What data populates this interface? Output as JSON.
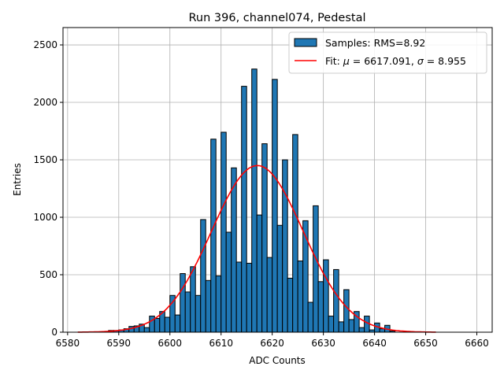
{
  "chart_data": {
    "type": "bar",
    "title": "Run 396, channel074, Pedestal",
    "xlabel": "ADC Counts",
    "ylabel": "Entries",
    "xlim": [
      6579.1,
      6663
    ],
    "ylim": [
      0,
      2651
    ],
    "grid": true,
    "legend_placement": "top-right",
    "xticks": [
      6580,
      6590,
      6600,
      6610,
      6620,
      6630,
      6640,
      6650,
      6660
    ],
    "yticks": [
      0,
      500,
      1000,
      1500,
      2000,
      2500
    ],
    "bin_width": 1,
    "bin_starts": [
      6588,
      6589,
      6590,
      6591,
      6592,
      6593,
      6594,
      6595,
      6596,
      6597,
      6598,
      6599,
      6600,
      6601,
      6602,
      6603,
      6604,
      6605,
      6606,
      6607,
      6608,
      6609,
      6610,
      6611,
      6612,
      6613,
      6614,
      6615,
      6616,
      6617,
      6618,
      6619,
      6620,
      6621,
      6622,
      6623,
      6624,
      6625,
      6626,
      6627,
      6628,
      6629,
      6630,
      6631,
      6632,
      6633,
      6634,
      6635,
      6636,
      6637,
      6638,
      6639,
      6640,
      6641,
      6642,
      6643
    ],
    "values": [
      15,
      15,
      20,
      30,
      50,
      55,
      70,
      40,
      140,
      120,
      180,
      130,
      320,
      150,
      510,
      350,
      570,
      320,
      980,
      450,
      1680,
      490,
      1740,
      870,
      1430,
      610,
      2140,
      600,
      2290,
      1020,
      1640,
      650,
      2200,
      930,
      1500,
      470,
      1720,
      620,
      970,
      260,
      1100,
      440,
      630,
      140,
      545,
      90,
      370,
      110,
      180,
      40,
      140,
      20,
      80,
      30,
      60,
      10
    ],
    "series": [
      {
        "name": "Samples: RMS=8.92",
        "kind": "histogram",
        "color": "#1f77b4"
      },
      {
        "name": "Fit: μ = 6617.091, σ = 8.955",
        "kind": "gaussian",
        "color": "#ff0000",
        "mu": 6617.091,
        "sigma": 8.955,
        "amplitude": 1450,
        "x_range": [
          6582,
          6652
        ]
      }
    ],
    "legend": {
      "samples_label": "Samples: RMS=8.92",
      "fit_prefix": "Fit: ",
      "fit_mu_symbol": "μ",
      "fit_mu_value": " = 6617.091, ",
      "fit_sigma_symbol": "σ",
      "fit_sigma_value": " = 8.955"
    }
  }
}
